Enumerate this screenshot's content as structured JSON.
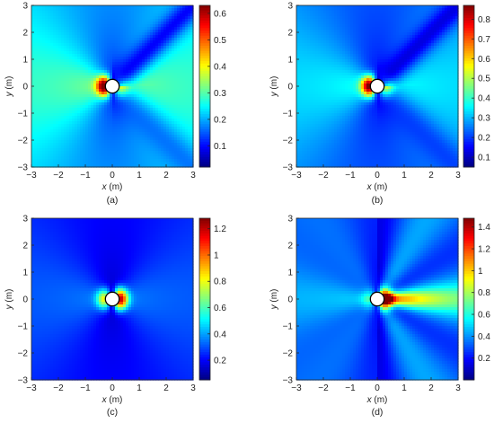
{
  "chart_data": [
    {
      "type": "heatmap",
      "caption": "(a)",
      "xlabel": {
        "var": "x",
        "unit": " (m)"
      },
      "ylabel": {
        "var": "y",
        "unit": " (m)"
      },
      "xlim": [
        -3,
        3
      ],
      "ylim": [
        -3,
        3
      ],
      "x_ticks": [
        -3,
        -2,
        -1,
        0,
        1,
        2,
        3
      ],
      "y_ticks": [
        -3,
        -2,
        -1,
        0,
        1,
        2,
        3
      ],
      "colorbar": {
        "min": 0.02,
        "max": 0.63,
        "ticks": [
          0.1,
          0.2,
          0.3,
          0.4,
          0.5,
          0.6
        ]
      },
      "obstacle": {
        "center": [
          0,
          0
        ],
        "radius": 0.18
      },
      "field": {
        "bg": 0.27,
        "peak_left": 0.63,
        "peak_right": 0.5,
        "wake_dir": "upper-right",
        "wake_value": 0.05
      }
    },
    {
      "type": "heatmap",
      "caption": "(b)",
      "xlabel": {
        "var": "x",
        "unit": " (m)"
      },
      "ylabel": {
        "var": "y",
        "unit": " (m)"
      },
      "xlim": [
        -3,
        3
      ],
      "ylim": [
        -3,
        3
      ],
      "x_ticks": [
        -3,
        -2,
        -1,
        0,
        1,
        2,
        3
      ],
      "y_ticks": [
        -3,
        -2,
        -1,
        0,
        1,
        2,
        3
      ],
      "colorbar": {
        "min": 0.05,
        "max": 0.87,
        "ticks": [
          0.1,
          0.2,
          0.3,
          0.4,
          0.5,
          0.6,
          0.7,
          0.8
        ]
      },
      "obstacle": {
        "center": [
          0,
          0
        ],
        "radius": 0.18
      },
      "field": {
        "bg": 0.32,
        "peak_left": 0.85,
        "peak_right": 0.7,
        "wake_dir": "upper-right",
        "wake_value": 0.08
      }
    },
    {
      "type": "heatmap",
      "caption": "(c)",
      "xlabel": {
        "var": "x",
        "unit": " (m)"
      },
      "ylabel": {
        "var": "y",
        "unit": " (m)"
      },
      "xlim": [
        -3,
        3
      ],
      "ylim": [
        -3,
        3
      ],
      "x_ticks": [
        -3,
        -2,
        -1,
        0,
        1,
        2,
        3
      ],
      "y_ticks": [
        -3,
        -2,
        -1,
        0,
        1,
        2,
        3
      ],
      "colorbar": {
        "min": 0.05,
        "max": 1.28,
        "ticks": [
          0.2,
          0.4,
          0.6,
          0.8,
          1,
          1.2
        ]
      },
      "obstacle": {
        "center": [
          0,
          0
        ],
        "radius": 0.18
      },
      "field": {
        "bg": 0.3,
        "peak_left": 0.75,
        "peak_right": 1.25,
        "wake_dir": "none",
        "wake_value": 0.2
      }
    },
    {
      "type": "heatmap",
      "caption": "(d)",
      "xlabel": {
        "var": "x",
        "unit": " (m)"
      },
      "ylabel": {
        "var": "y",
        "unit": " (m)"
      },
      "xlim": [
        -3,
        3
      ],
      "ylim": [
        -3,
        3
      ],
      "x_ticks": [
        -3,
        -2,
        -1,
        0,
        1,
        2,
        3
      ],
      "y_ticks": [
        -3,
        -2,
        -1,
        0,
        1,
        2,
        3
      ],
      "colorbar": {
        "min": 0.0,
        "max": 1.48,
        "ticks": [
          0.2,
          0.4,
          0.6,
          0.8,
          1,
          1.2,
          1.4
        ]
      },
      "obstacle": {
        "center": [
          0,
          0
        ],
        "radius": 0.18
      },
      "field": {
        "bg": 0.4,
        "peak_left": 0.6,
        "peak_right": 1.45,
        "wake_dir": "right",
        "wake_value": 1.2
      }
    }
  ]
}
